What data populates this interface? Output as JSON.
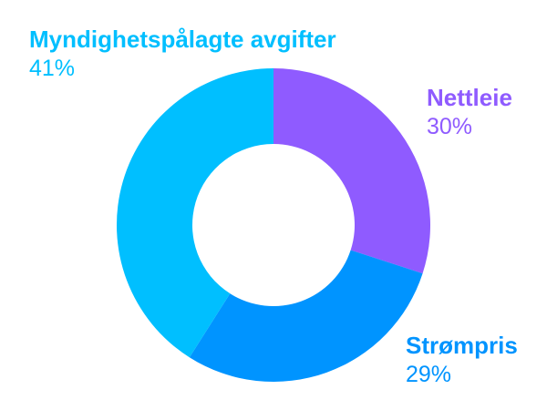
{
  "chart_data": {
    "type": "pie",
    "donut": true,
    "slices": [
      {
        "label": "Myndighetspålagte avgifter",
        "value": 41,
        "value_label": "41%",
        "color": "#00BFFF"
      },
      {
        "label": "Nettleie",
        "value": 30,
        "value_label": "30%",
        "color": "#8F5BFF"
      },
      {
        "label": "Strømpris",
        "value": 29,
        "value_label": "29%",
        "color": "#0094FF"
      }
    ]
  }
}
